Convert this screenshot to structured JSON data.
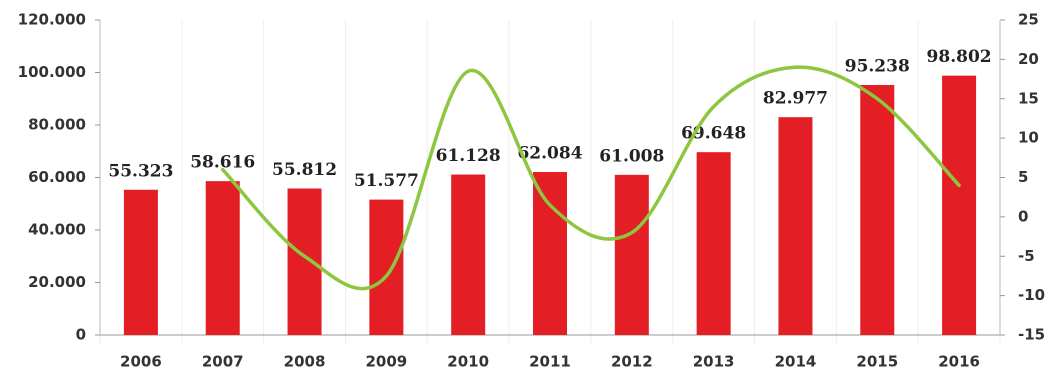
{
  "chart_data": {
    "type": "bar",
    "categories": [
      "2006",
      "2007",
      "2008",
      "2009",
      "2010",
      "2011",
      "2012",
      "2013",
      "2014",
      "2015",
      "2016"
    ],
    "series": [
      {
        "type": "bar",
        "color": "#e31e24",
        "values": [
          55323,
          58616,
          55812,
          51577,
          61128,
          62084,
          61008,
          69648,
          82977,
          95238,
          98802
        ],
        "value_labels": [
          "55.323",
          "58.616",
          "55.812",
          "51.577",
          "61.128",
          "62.084",
          "61.008",
          "69.648",
          "82.977",
          "95.238",
          "98.802"
        ]
      },
      {
        "type": "line",
        "color": "#8dc63f",
        "axis": "y2",
        "values": [
          null,
          6,
          -5,
          -7.5,
          18.5,
          1.5,
          -2,
          14,
          19,
          15,
          4
        ]
      }
    ],
    "ylim": [
      0,
      120000
    ],
    "yticks": [
      0,
      {
        "value": 20000,
        "label": "20.000"
      },
      {
        "value": 40000,
        "label": "40.000"
      },
      {
        "value": 60000,
        "label": "60.000"
      },
      {
        "value": 80000,
        "label": "80.000"
      },
      {
        "value": 100000,
        "label": "100.000"
      },
      {
        "value": 120000,
        "label": "120.000"
      }
    ],
    "y2lim": [
      -15,
      25
    ],
    "y2ticks": [
      -15,
      -10,
      -5,
      0,
      5,
      10,
      15,
      20,
      25
    ]
  }
}
